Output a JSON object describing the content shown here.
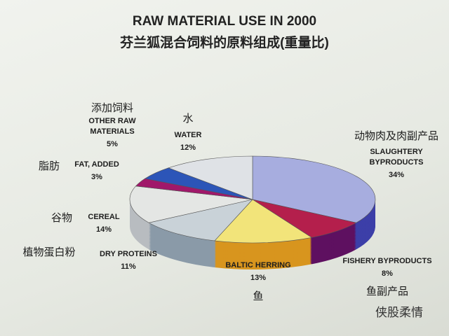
{
  "chart_data": {
    "type": "pie3d",
    "title": "RAW MATERIAL USE IN 2000",
    "subtitle": "芬兰狐混合饲料的原料组成(重量比)",
    "categories": [
      "SLAUGHTERY BYPRODUCTS",
      "FISHERY BYPRODUCTS",
      "BALTIC HERRING",
      "DRY PROTEINS",
      "CEREAL",
      "FAT, ADDED",
      "OTHER RAW MATERIALS",
      "WATER"
    ],
    "chinese_labels": [
      "动物肉及肉副产品",
      "鱼副产品",
      "鱼",
      "植物蛋白粉",
      "谷物",
      "脂肪",
      "添加饲料",
      "水"
    ],
    "values": [
      34,
      8,
      13,
      11,
      14,
      3,
      5,
      12
    ],
    "value_labels": [
      "34%",
      "8%",
      "13%",
      "11%",
      "14%",
      "3%",
      "5%",
      "12%"
    ],
    "colors": [
      "#a7addf",
      "#b41f4c",
      "#f2e47a",
      "#c9d2d8",
      "#e4e6e4",
      "#a0186a",
      "#2c55b8",
      "#dfe2e6"
    ],
    "side_colors": [
      "#3c3fa8",
      "#5e1060",
      "#d8951e",
      "#8a9aa8",
      "#b8bcc0",
      "#6a0f3c",
      "#1b3480",
      "#a8acb4"
    ]
  },
  "watermark": "侠股柔情"
}
